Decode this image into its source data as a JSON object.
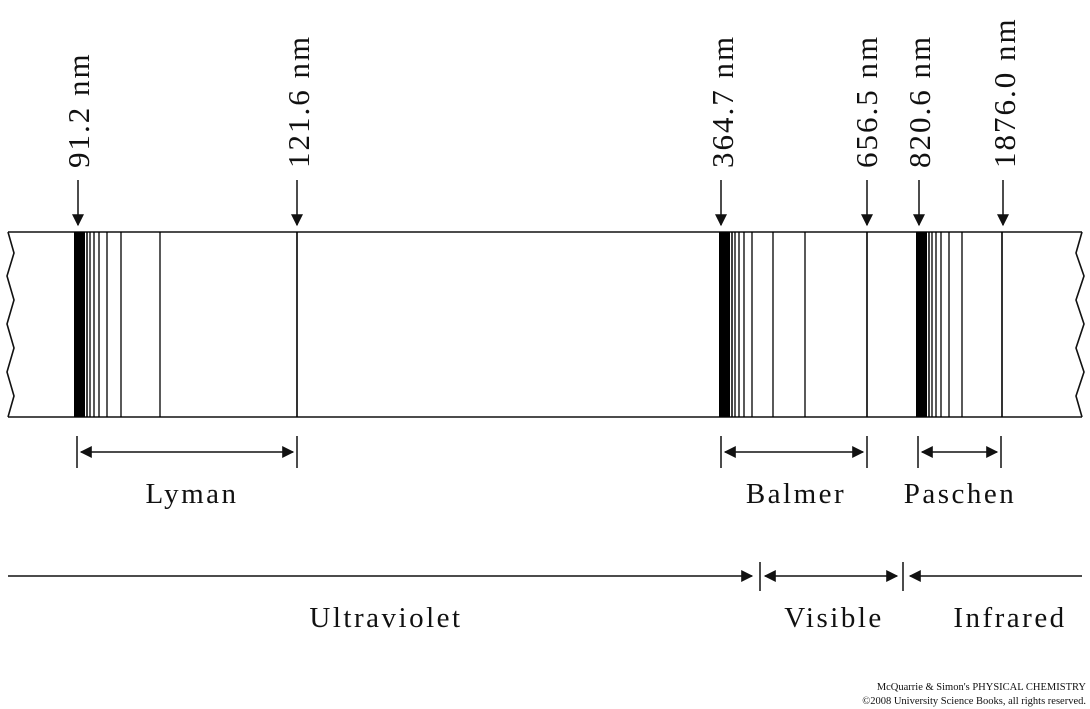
{
  "figure": {
    "wavelength_labels": [
      "91.2 nm",
      "121.6 nm",
      "364.7 nm",
      "656.5 nm",
      "820.6 nm",
      "1876.0 nm"
    ],
    "series": [
      {
        "name": "Lyman",
        "limit_nm": 91.2,
        "first_line_nm": 121.6
      },
      {
        "name": "Balmer",
        "limit_nm": 364.7,
        "first_line_nm": 656.5
      },
      {
        "name": "Paschen",
        "limit_nm": 820.6,
        "first_line_nm": 1876.0
      }
    ],
    "regions": [
      "Ultraviolet",
      "Visible",
      "Infrared"
    ],
    "credit": {
      "line1": "McQuarrie & Simon's PHYSICAL CHEMISTRY",
      "line2": "©2008 University Science Books, all rights reserved."
    }
  }
}
